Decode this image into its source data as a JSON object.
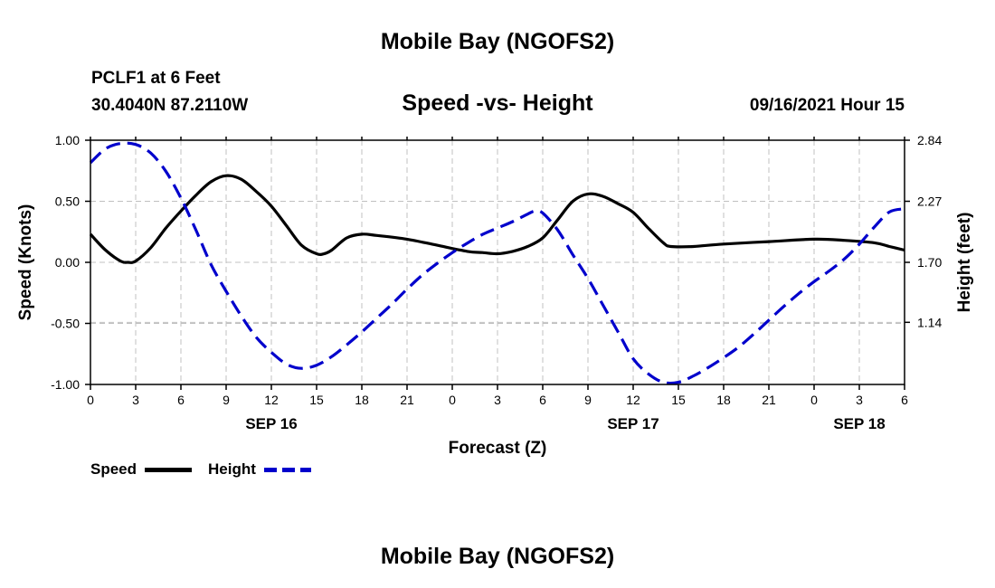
{
  "header": {
    "title": "Mobile Bay (NGOFS2)",
    "station": "PCLF1 at 6 Feet",
    "coordinates": "30.4040N  87.2110W",
    "chart_title": "Speed -vs- Height",
    "datetime": "09/16/2021 Hour 15"
  },
  "footer": {
    "title": "Mobile Bay (NGOFS2)"
  },
  "legend": {
    "speed_label": "Speed",
    "height_label": "Height"
  },
  "colors": {
    "speed": "#000000",
    "height": "#0000cc",
    "grid": "#c0c0c0"
  },
  "chart_data": {
    "type": "line",
    "title": "Speed -vs- Height",
    "xlabel": "Forecast (Z)",
    "ylabel": "Speed (Knots)",
    "ylabel_right": "Height (feet)",
    "x_unit": "forecast hour from 09/16/2021 00Z",
    "xlim": [
      0,
      54
    ],
    "ylim": [
      -1.0,
      1.0
    ],
    "ylim_right": [
      0.56,
      2.84
    ],
    "grid": true,
    "legend_position": "bottom-left",
    "x_ticks": [
      0,
      3,
      6,
      9,
      12,
      15,
      18,
      21,
      24,
      27,
      30,
      33,
      36,
      39,
      42,
      45,
      48,
      51,
      54
    ],
    "x_tick_labels": [
      "0",
      "3",
      "6",
      "9",
      "12",
      "15",
      "18",
      "21",
      "0",
      "3",
      "6",
      "9",
      "12",
      "15",
      "18",
      "21",
      "0",
      "3",
      "6"
    ],
    "date_labels": [
      {
        "x": 12,
        "label": "SEP 16"
      },
      {
        "x": 36,
        "label": "SEP 17"
      },
      {
        "x": 51,
        "label": "SEP 18"
      }
    ],
    "y_ticks": [
      -1.0,
      -0.5,
      0.0,
      0.5,
      1.0
    ],
    "y_tick_labels": [
      "-1.00",
      "-0.50",
      "0.00",
      "0.50",
      "1.00"
    ],
    "y_ticks_right": [
      1.14,
      1.7,
      2.27,
      2.84
    ],
    "y_tick_labels_right": [
      "1.14",
      "1.70",
      "2.27",
      "2.84"
    ],
    "series": [
      {
        "name": "Speed",
        "axis": "left",
        "style": "solid",
        "points": [
          [
            0,
            0.23
          ],
          [
            1,
            0.1
          ],
          [
            2,
            0.01
          ],
          [
            2.5,
            0.0
          ],
          [
            3,
            0.01
          ],
          [
            4,
            0.12
          ],
          [
            5,
            0.28
          ],
          [
            6,
            0.42
          ],
          [
            7,
            0.55
          ],
          [
            8,
            0.66
          ],
          [
            9,
            0.71
          ],
          [
            10,
            0.68
          ],
          [
            11,
            0.58
          ],
          [
            12,
            0.46
          ],
          [
            13,
            0.3
          ],
          [
            14,
            0.14
          ],
          [
            15,
            0.07
          ],
          [
            15.5,
            0.07
          ],
          [
            16,
            0.1
          ],
          [
            17,
            0.2
          ],
          [
            18,
            0.23
          ],
          [
            19,
            0.22
          ],
          [
            21,
            0.19
          ],
          [
            23,
            0.14
          ],
          [
            25,
            0.09
          ],
          [
            26,
            0.08
          ],
          [
            27,
            0.07
          ],
          [
            28,
            0.09
          ],
          [
            29,
            0.13
          ],
          [
            30,
            0.2
          ],
          [
            31,
            0.35
          ],
          [
            32,
            0.5
          ],
          [
            33,
            0.56
          ],
          [
            34,
            0.54
          ],
          [
            35,
            0.48
          ],
          [
            36,
            0.41
          ],
          [
            37,
            0.28
          ],
          [
            38,
            0.16
          ],
          [
            38.5,
            0.13
          ],
          [
            40,
            0.13
          ],
          [
            42,
            0.15
          ],
          [
            45,
            0.17
          ],
          [
            48,
            0.19
          ],
          [
            50,
            0.18
          ],
          [
            52,
            0.16
          ],
          [
            53,
            0.13
          ],
          [
            54,
            0.1
          ]
        ]
      },
      {
        "name": "Height",
        "axis": "right",
        "style": "dashed",
        "points": [
          [
            0,
            2.63
          ],
          [
            1,
            2.76
          ],
          [
            2,
            2.81
          ],
          [
            3,
            2.8
          ],
          [
            4,
            2.72
          ],
          [
            5,
            2.55
          ],
          [
            6,
            2.3
          ],
          [
            7,
            2.0
          ],
          [
            8,
            1.68
          ],
          [
            9,
            1.43
          ],
          [
            10,
            1.2
          ],
          [
            11,
            1.0
          ],
          [
            12,
            0.86
          ],
          [
            13,
            0.75
          ],
          [
            14,
            0.71
          ],
          [
            15,
            0.74
          ],
          [
            16,
            0.82
          ],
          [
            17,
            0.93
          ],
          [
            18,
            1.05
          ],
          [
            19,
            1.18
          ],
          [
            20,
            1.31
          ],
          [
            21,
            1.45
          ],
          [
            22,
            1.58
          ],
          [
            23,
            1.69
          ],
          [
            24,
            1.79
          ],
          [
            25,
            1.88
          ],
          [
            26,
            1.96
          ],
          [
            27,
            2.02
          ],
          [
            28,
            2.08
          ],
          [
            29,
            2.15
          ],
          [
            29.5,
            2.18
          ],
          [
            30,
            2.16
          ],
          [
            31,
            2.0
          ],
          [
            32,
            1.77
          ],
          [
            33,
            1.55
          ],
          [
            34,
            1.3
          ],
          [
            35,
            1.05
          ],
          [
            36,
            0.8
          ],
          [
            37,
            0.66
          ],
          [
            38,
            0.58
          ],
          [
            39,
            0.58
          ],
          [
            40,
            0.64
          ],
          [
            41,
            0.72
          ],
          [
            42,
            0.81
          ],
          [
            43,
            0.91
          ],
          [
            44,
            1.03
          ],
          [
            45,
            1.16
          ],
          [
            46,
            1.29
          ],
          [
            47,
            1.41
          ],
          [
            48,
            1.52
          ],
          [
            49,
            1.62
          ],
          [
            50,
            1.73
          ],
          [
            51,
            1.87
          ],
          [
            52,
            2.03
          ],
          [
            53,
            2.17
          ],
          [
            54,
            2.2
          ]
        ]
      }
    ]
  }
}
